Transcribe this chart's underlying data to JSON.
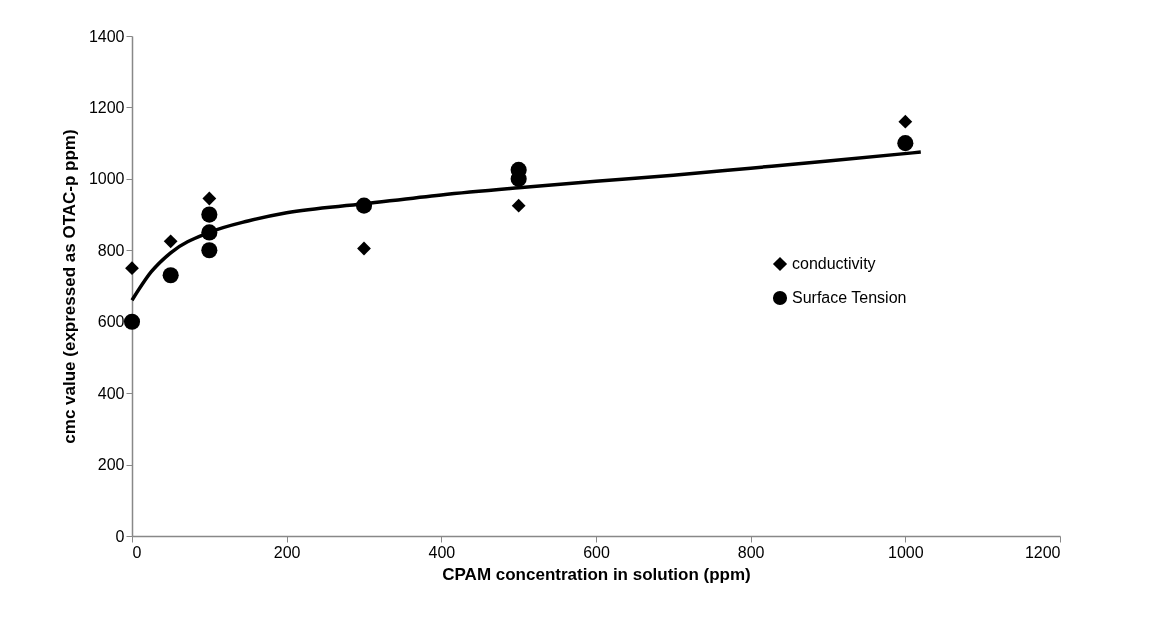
{
  "chart_data": {
    "type": "scatter",
    "xlabel": "CPAM concentration in solution (ppm)",
    "ylabel": "cmc value (expressed as OTAC-p ppm)",
    "xlim": [
      0,
      1200
    ],
    "xticks": [
      0,
      200,
      400,
      600,
      800,
      1000,
      1200
    ],
    "ylim": [
      0,
      1400
    ],
    "yticks": [
      0,
      200,
      400,
      600,
      800,
      1000,
      1200,
      1400
    ],
    "legend": "right",
    "series": [
      {
        "name": "conductivity",
        "color": "#000000",
        "marker": "diamond",
        "x": [
          0,
          50,
          100,
          300,
          500,
          1000
        ],
        "values": [
          750,
          825,
          945,
          805,
          925,
          1160
        ]
      },
      {
        "name": "Surface Tension",
        "color": "#000000",
        "marker": "circle",
        "x": [
          0,
          50,
          100,
          100,
          100,
          300,
          500,
          500,
          1000
        ],
        "values": [
          600,
          730,
          900,
          850,
          800,
          925,
          1025,
          1000,
          1100
        ]
      },
      {
        "type": "line",
        "color": "#000000",
        "line_style": "solid",
        "x": [
          0,
          25,
          50,
          100,
          150,
          200,
          300,
          400,
          500,
          600,
          700,
          800,
          900,
          1020
        ],
        "values": [
          660,
          740,
          793,
          850,
          882,
          905,
          930,
          955,
          975,
          993,
          1010,
          1030,
          1050,
          1075
        ]
      }
    ]
  }
}
